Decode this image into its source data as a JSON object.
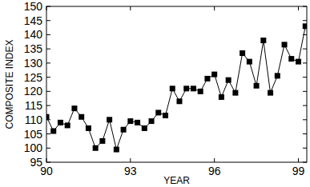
{
  "chart_data": {
    "type": "line",
    "x_label": "YEAR",
    "y_label": "COMPOSITE INDEX",
    "x": [
      90,
      90.25,
      90.5,
      90.75,
      91,
      91.25,
      91.5,
      91.75,
      92,
      92.25,
      92.5,
      92.75,
      93,
      93.25,
      93.5,
      93.75,
      94,
      94.25,
      94.5,
      94.75,
      95,
      95.25,
      95.5,
      95.75,
      96,
      96.25,
      96.5,
      96.75,
      97,
      97.25,
      97.5,
      97.75,
      98,
      98.25,
      98.5,
      98.75,
      99,
      99.25
    ],
    "values": [
      111,
      106,
      109,
      108,
      114,
      111,
      107,
      100,
      102.5,
      110,
      99.5,
      106.5,
      109.5,
      109,
      107,
      109.5,
      112.5,
      111.5,
      121,
      116.5,
      121,
      121,
      120,
      124.5,
      126,
      118,
      124,
      119.5,
      133.5,
      130.5,
      122,
      138,
      119.5,
      125.5,
      136.5,
      131.5,
      130.5,
      143
    ],
    "color": "#000000",
    "marker": "square",
    "line_style": "solid",
    "grid": false,
    "xlim": [
      90,
      99.3
    ],
    "xticks": [
      90,
      93,
      96,
      99
    ],
    "ylim": [
      95,
      150
    ],
    "yticks": [
      95,
      100,
      105,
      110,
      115,
      120,
      125,
      130,
      135,
      140,
      145,
      150
    ]
  }
}
